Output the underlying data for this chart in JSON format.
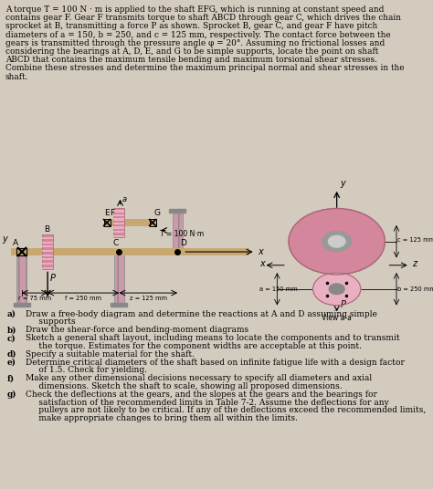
{
  "bg_color": "#d4cbbf",
  "text_color": "#000000",
  "title_paragraph_lines": [
    "A torque T = 100 N · m is applied to the shaft EFG, which is running at constant speed and",
    "contains gear F. Gear F transmits torque to shaft ABCD through gear C, which drives the chain",
    "sprocket at B, transmitting a force P as shown. Sprocket B, gear C, and gear F have pitch",
    "diameters of a = 150, b = 250, and c = 125 mm, respectively. The contact force between the",
    "gears is transmitted through the pressure angle φ = 20°. Assuming no frictional losses and",
    "considering the bearings at A, D, E, and G to be simple supports, locate the point on shaft",
    "ABCD that contains the maximum tensile bending and maximum torsional shear stresses.",
    "Combine these stresses and determine the maximum principal normal and shear stresses in the",
    "shaft."
  ],
  "questions": [
    [
      "a)",
      "Draw a free-body diagram and determine the reactions at A and D assuming simple",
      "     supports"
    ],
    [
      "b)",
      "Draw the shear-force and bending-moment diagrams"
    ],
    [
      "c)",
      "Sketch a general shaft layout, including means to locate the components and to transmit",
      "     the torque. Estimates for the component widths are acceptable at this point."
    ],
    [
      "d)",
      "Specify a suitable material for the shaft."
    ],
    [
      "e)",
      "Determine critical diameters of the shaft based on infinite fatigue life with a design factor",
      "     of 1.5. Check for yielding."
    ],
    [
      "f)",
      "Make any other dimensional decisions necessary to specify all diameters and axial",
      "     dimensions. Sketch the shaft to scale, showing all proposed dimensions."
    ],
    [
      "g)",
      "Check the deflections at the gears, and the slopes at the gears and the bearings for",
      "     satisfaction of the recommended limits in Table 7-2. Assume the deflections for any",
      "     pulleys are not likely to be critical. If any of the deflections exceed the recommended limits,",
      "     make appropriate changes to bring them all within the limits."
    ]
  ],
  "shaft_color": "#c8a870",
  "pink_color": "#d4879c",
  "pink2_color": "#e8b0c0",
  "hatch_color": "#cc99aa",
  "gray_color": "#888888",
  "dark_color": "#444444"
}
